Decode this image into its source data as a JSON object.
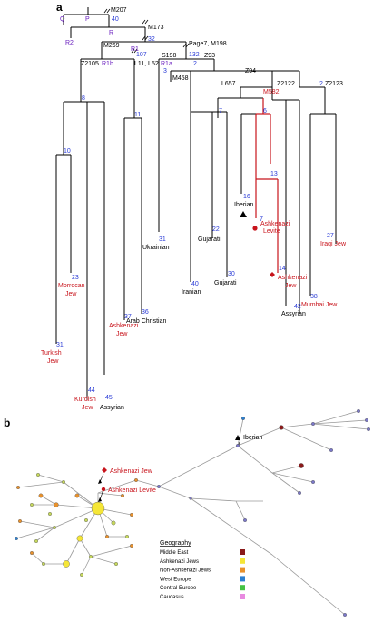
{
  "panel_a": {
    "label": "a",
    "haplogroups": {
      "Q": "Q",
      "P": "P",
      "R2": "R2",
      "R": "R",
      "R1": "R1",
      "R1b": "R1b",
      "R1a": "R1a"
    },
    "markers": {
      "M207": "M207",
      "M173": "M173",
      "M269": "M269",
      "Page7": "Page7, M198",
      "Z2105": "Z2105",
      "L11": "L11, L52",
      "S198": "S198",
      "Z93": "Z93",
      "M458": "M458",
      "Z94": "Z94",
      "L657": "L657",
      "Z2122": "Z2122",
      "Z2123": "Z2123",
      "M582": "M582"
    },
    "numbers": {
      "n40": "40",
      "n32": "32",
      "n107": "107",
      "n132": "132",
      "n3": "3",
      "n2a": "2",
      "n8": "8",
      "n11": "11",
      "n7": "7",
      "n6": "6",
      "n2b": "2",
      "n10": "10",
      "n16": "16",
      "n13": "13",
      "n7b": "7",
      "n22": "22",
      "n27": "27",
      "n31a": "31",
      "n23": "23",
      "n40b": "40",
      "n30": "30",
      "n14": "14",
      "n37": "37",
      "n36": "36",
      "n42": "42",
      "n38": "38",
      "n31b": "31",
      "n44": "44",
      "n45": "45"
    },
    "populations": {
      "ukrainian": "Ukrainian",
      "iberian": "Iberian",
      "ashk_levite_1": "Ashkenazi",
      "ashk_levite_2": "Levite",
      "gujarati_1": "Gujarati",
      "iraqi_1": "Iraqi Jew",
      "morrocan_1": "Morrocan",
      "morrocan_2": "Jew",
      "iranian": "Iranian",
      "gujarati_2": "Gujarati",
      "ashk_jew_1": "Ashkenazi",
      "ashk_jew_2": "Jew",
      "arab_christian": "Arab Christian",
      "ashk_37_1": "Ashkenazi",
      "ashk_37_2": "Jew",
      "assyrian_1": "Assyrian",
      "mumbai": "Mumbai Jew",
      "turkish_1": "Turkish",
      "turkish_2": "Jew",
      "kurdish_1": "Kurdish",
      "kurdish_2": "Jew",
      "assyrian_2": "Assyrian"
    }
  },
  "panel_b": {
    "label": "b",
    "callouts": {
      "iberian": "Iberian",
      "ashkenazi_jew": "Ashkenazi Jew",
      "ashkenazi_levite": "Ashkenazi Levite"
    },
    "legend": {
      "title": "Geography",
      "items": [
        {
          "label": "Middle East",
          "color": "#8b1a1a"
        },
        {
          "label": "Ashkenazi Jews",
          "color": "#f5e637"
        },
        {
          "label": "Non-Ashkenazi Jews",
          "color": "#e8912c"
        },
        {
          "label": "West Europe",
          "color": "#2b7fd0"
        },
        {
          "label": "Central Europe",
          "color": "#44c243"
        },
        {
          "label": "Caucasus",
          "color": "#e88ae0"
        }
      ]
    }
  }
}
